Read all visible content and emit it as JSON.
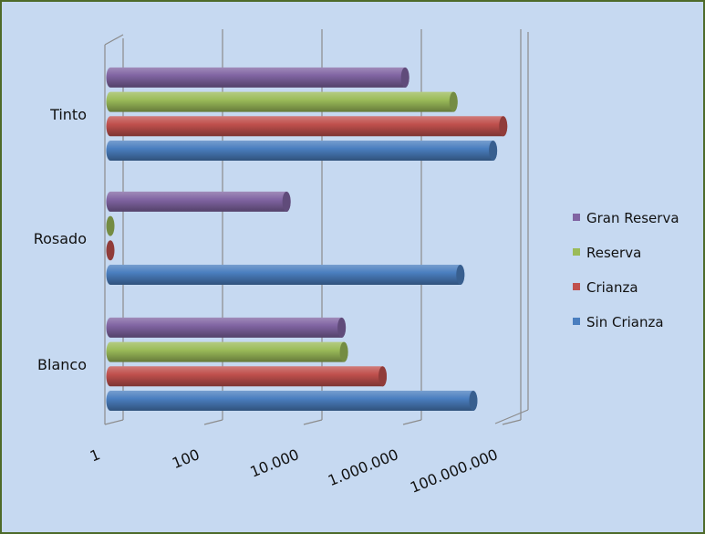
{
  "chart_data": {
    "type": "bar",
    "orientation": "horizontal",
    "style": "3d-cylinder",
    "x_scale": "log10",
    "xlim": [
      1,
      100000000
    ],
    "x_ticks": [
      1,
      100,
      10000,
      1000000,
      100000000
    ],
    "x_tick_labels": [
      "1",
      "100",
      "10.000",
      "1.000.000",
      "100.000.000"
    ],
    "categories": [
      "Blanco",
      "Rosado",
      "Tinto"
    ],
    "series": [
      {
        "name": "Sin Crianza",
        "color": "#4a7ebf",
        "values": [
          20000000,
          11000000,
          50000000
        ]
      },
      {
        "name": "Crianza",
        "color": "#c0504d",
        "values": [
          300000,
          1,
          80000000
        ]
      },
      {
        "name": "Reserva",
        "color": "#9bbb59",
        "values": [
          50000,
          1,
          8000000
        ]
      },
      {
        "name": "Gran Reserva",
        "color": "#8064a2",
        "values": [
          45000,
          3500,
          850000
        ]
      }
    ],
    "legend_position": "right",
    "grid": true,
    "title": "",
    "xlabel": "",
    "ylabel": ""
  }
}
